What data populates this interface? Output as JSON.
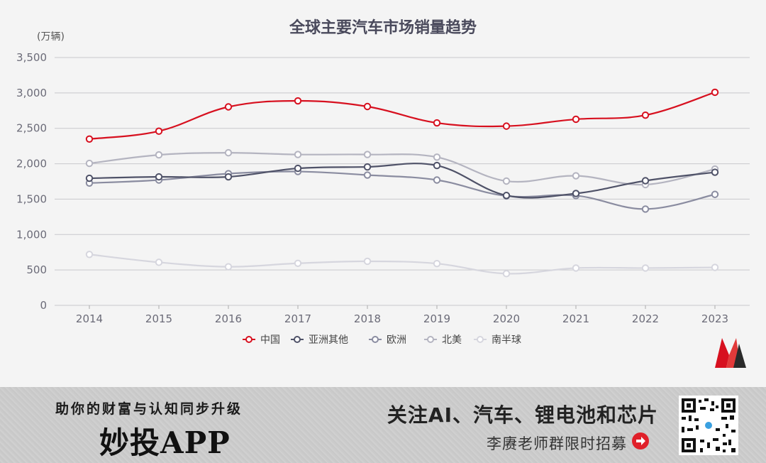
{
  "chart_data": {
    "type": "line",
    "title": "全球主要汽车市场销量趋势",
    "unit_label": "(万辆)",
    "x": [
      "2014",
      "2015",
      "2016",
      "2017",
      "2018",
      "2019",
      "2020",
      "2021",
      "2022",
      "2023"
    ],
    "ylim": [
      0,
      3500
    ],
    "yticks": [
      0,
      500,
      1000,
      1500,
      2000,
      2500,
      3000,
      3500
    ],
    "ytick_labels": [
      "0",
      "500",
      "1,000",
      "1,500",
      "2,000",
      "2,500",
      "3,000",
      "3,500"
    ],
    "grid": true,
    "legend_placement": "bottom",
    "series": [
      {
        "name": "中国",
        "color": "#d7101f",
        "values": [
          2349,
          2460,
          2803,
          2888,
          2808,
          2577,
          2531,
          2628,
          2686,
          3009
        ]
      },
      {
        "name": "亚洲其他",
        "color": "#4f5268",
        "values": [
          1795,
          1815,
          1815,
          1935,
          1955,
          1975,
          1552,
          1580,
          1760,
          1880
        ]
      },
      {
        "name": "欧洲",
        "color": "#8a8ca0",
        "values": [
          1727,
          1770,
          1860,
          1890,
          1840,
          1770,
          1545,
          1550,
          1360,
          1567
        ]
      },
      {
        "name": "北美",
        "color": "#b4b4c0",
        "values": [
          2005,
          2125,
          2155,
          2130,
          2130,
          2093,
          1755,
          1830,
          1705,
          1925
        ]
      },
      {
        "name": "南半球",
        "color": "#d6d6de",
        "values": [
          719,
          608,
          545,
          594,
          622,
          590,
          448,
          527,
          527,
          536
        ]
      }
    ]
  },
  "banner": {
    "slogan": "助你的财富与认知同步升级",
    "app_name": "妙投APP",
    "follow_text": "关注AI、汽车、锂电池和芯片",
    "recruit_text": "李赓老师群限时招募"
  },
  "icons": {
    "logo": "brand-m-logo",
    "arrow": "arrow-right-circle-icon",
    "qr": "qr-code"
  }
}
